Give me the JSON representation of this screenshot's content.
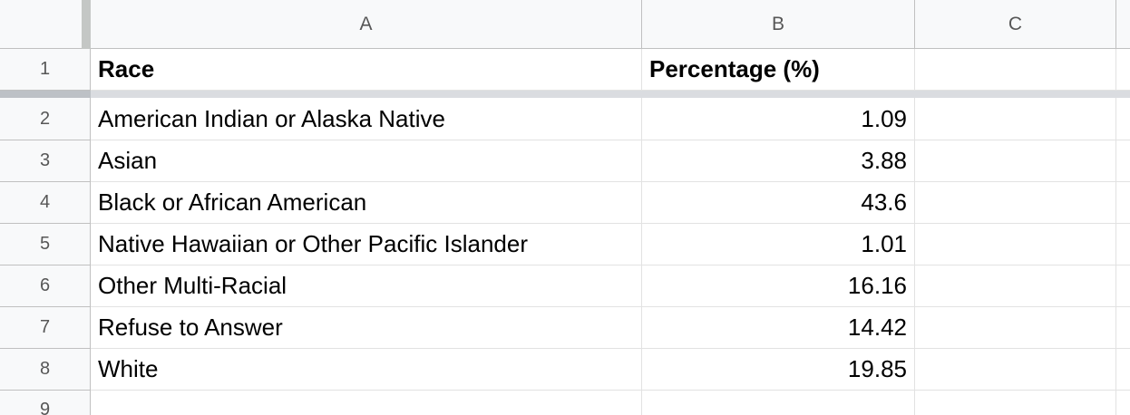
{
  "columns": [
    "A",
    "B",
    "C"
  ],
  "row_numbers": [
    "1",
    "2",
    "3",
    "4",
    "5",
    "6",
    "7",
    "8",
    "9"
  ],
  "header": {
    "race": "Race",
    "percentage": "Percentage (%)"
  },
  "rows": [
    {
      "race": "American Indian or Alaska Native",
      "percentage": "1.09"
    },
    {
      "race": "Asian",
      "percentage": "3.88"
    },
    {
      "race": "Black or African American",
      "percentage": "43.6"
    },
    {
      "race": "Native Hawaiian or Other Pacific Islander",
      "percentage": "1.01"
    },
    {
      "race": "Other Multi-Racial",
      "percentage": "16.16"
    },
    {
      "race": "Refuse to Answer",
      "percentage": "14.42"
    },
    {
      "race": "White",
      "percentage": "19.85"
    }
  ]
}
